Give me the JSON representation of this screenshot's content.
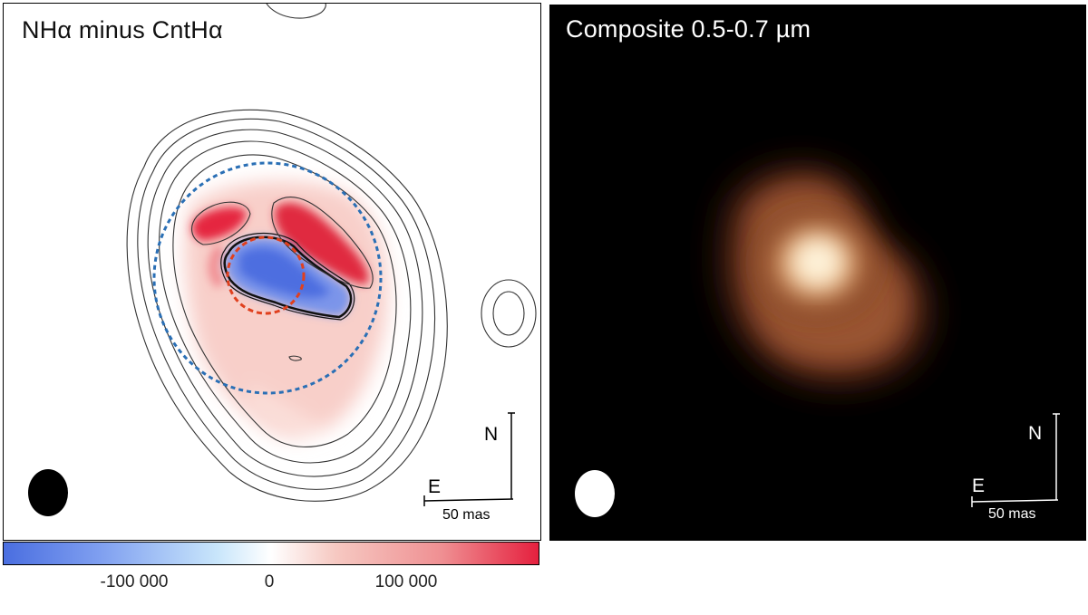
{
  "left_panel": {
    "title": "NHα minus CntHα",
    "compass": {
      "north": "N",
      "east": "E"
    },
    "scale_bar": "50 mas"
  },
  "right_panel": {
    "title": "Composite 0.5-0.7 µm",
    "compass": {
      "north": "N",
      "east": "E"
    },
    "scale_bar": "50 mas"
  },
  "colorbar": {
    "ticks": [
      "-100 000",
      "0",
      "100 000"
    ],
    "colors": {
      "negative": "#4a6ee0",
      "zero": "#ffffff",
      "positive": "#e5203e"
    }
  },
  "overlay_colors": {
    "outer_circle": "#2a6fb5",
    "inner_circle": "#e0401e"
  }
}
